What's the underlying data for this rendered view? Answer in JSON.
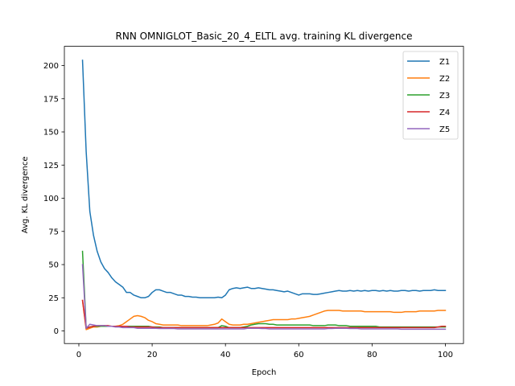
{
  "chart_data": {
    "type": "line",
    "title": "RNN OMNIGLOT_Basic_20_4_ELTL avg. training KL divergence",
    "xlabel": "Epoch",
    "ylabel": "Avg. KL divergence",
    "xlim": [
      -3.95,
      104.95
    ],
    "ylim": [
      -9.5,
      214.5
    ],
    "xticks": [
      0,
      20,
      40,
      60,
      80,
      100
    ],
    "xtick_labels": [
      "0",
      "20",
      "40",
      "60",
      "80",
      "100"
    ],
    "yticks": [
      0,
      25,
      50,
      75,
      100,
      125,
      150,
      175,
      200
    ],
    "ytick_labels": [
      "0",
      "25",
      "50",
      "75",
      "100",
      "125",
      "150",
      "175",
      "200"
    ],
    "grid": false,
    "legend_position": "top-right",
    "x": [
      1,
      2,
      3,
      4,
      5,
      6,
      7,
      8,
      9,
      10,
      11,
      12,
      13,
      14,
      15,
      16,
      17,
      18,
      19,
      20,
      21,
      22,
      23,
      24,
      25,
      26,
      27,
      28,
      29,
      30,
      31,
      32,
      33,
      34,
      35,
      36,
      37,
      38,
      39,
      40,
      41,
      42,
      43,
      44,
      45,
      46,
      47,
      48,
      49,
      50,
      51,
      52,
      53,
      54,
      55,
      56,
      57,
      58,
      59,
      60,
      61,
      62,
      63,
      64,
      65,
      66,
      67,
      68,
      69,
      70,
      71,
      72,
      73,
      74,
      75,
      76,
      77,
      78,
      79,
      80,
      81,
      82,
      83,
      84,
      85,
      86,
      87,
      88,
      89,
      90,
      91,
      92,
      93,
      94,
      95,
      96,
      97,
      98,
      99,
      100
    ],
    "series": [
      {
        "name": "Z1",
        "color": "#1f77b4",
        "values": [
          204,
          135,
          90,
          72,
          60,
          52,
          47,
          44,
          40,
          37,
          35,
          33,
          29,
          29,
          27,
          26,
          25,
          25,
          26,
          29,
          31,
          31,
          30,
          29,
          29,
          28,
          27,
          27,
          26,
          26,
          25.5,
          25.5,
          25,
          25,
          25,
          25,
          25,
          25.5,
          25,
          27,
          31,
          32,
          32.5,
          32,
          32.5,
          33,
          32,
          32,
          32.5,
          32,
          31.5,
          31,
          31,
          30.5,
          30,
          29.5,
          30,
          29,
          28,
          27,
          28,
          28,
          28,
          27.5,
          27.5,
          28,
          28.5,
          29,
          29.5,
          30,
          30.5,
          30,
          30,
          30.5,
          30,
          30.5,
          30,
          30.5,
          30,
          30.5,
          30.5,
          30,
          30.5,
          30,
          30.5,
          30,
          30,
          30.5,
          30.5,
          30,
          30.5,
          30.5,
          30,
          30.5,
          30.5,
          30.5,
          31,
          30.5,
          30.5,
          30.5
        ]
      },
      {
        "name": "Z2",
        "color": "#ff7f0e",
        "values": [
          23,
          1,
          2,
          3,
          3,
          3.5,
          4,
          3.5,
          3.5,
          3.5,
          4,
          5,
          7,
          9,
          11,
          11.5,
          11,
          10,
          8,
          7,
          5.5,
          5,
          4.5,
          4.5,
          4.5,
          4.5,
          4.5,
          4,
          4,
          4,
          4,
          4,
          4,
          4,
          4,
          4.5,
          5,
          6,
          9,
          7,
          5,
          4.5,
          4.5,
          4.5,
          5,
          5,
          5.5,
          6,
          6.5,
          7,
          7.5,
          8,
          8.5,
          8.5,
          8.5,
          8.5,
          8.5,
          9,
          9,
          9.5,
          10,
          10.5,
          11,
          12,
          13,
          14,
          15,
          15.5,
          15.5,
          15.5,
          15.5,
          15,
          15,
          15,
          15,
          15,
          15,
          14.5,
          14.5,
          14.5,
          14.5,
          14.5,
          14.5,
          14.5,
          14.5,
          14,
          14,
          14,
          14.5,
          14.5,
          14.5,
          14.5,
          15,
          15,
          15,
          15,
          15,
          15.5,
          15.5,
          15.5
        ]
      },
      {
        "name": "Z3",
        "color": "#2ca02c",
        "values": [
          60,
          2,
          3,
          3.5,
          3.5,
          3.5,
          3.5,
          3.5,
          3.5,
          3.5,
          3.5,
          3.5,
          3.5,
          3.5,
          3.5,
          3.5,
          3.5,
          3.5,
          3.5,
          3,
          3,
          3,
          2.5,
          2.5,
          2.5,
          2.5,
          2.5,
          2.5,
          2.5,
          2.5,
          2.5,
          2.5,
          2.5,
          2.5,
          2.5,
          2.5,
          2.5,
          2.5,
          4,
          3.5,
          2.5,
          2.5,
          2.5,
          2.5,
          3,
          3.5,
          4.5,
          5,
          5.5,
          5.5,
          5.5,
          5,
          5,
          4.5,
          4.5,
          4.5,
          4.5,
          4.5,
          4.5,
          4.5,
          4.5,
          4.5,
          4.5,
          4,
          4,
          4,
          4,
          4.5,
          4.5,
          4.5,
          4,
          4,
          4,
          3.5,
          3.5,
          3.5,
          3.5,
          3.5,
          3.5,
          3.5,
          3.5,
          3,
          3,
          3,
          3,
          3,
          3,
          3,
          3,
          3,
          3,
          3,
          3,
          3,
          3,
          3,
          3,
          3,
          3,
          3
        ]
      },
      {
        "name": "Z4",
        "color": "#d62728",
        "values": [
          23,
          2,
          3,
          3.5,
          4,
          4,
          4,
          4,
          3.5,
          3.5,
          3.5,
          3.5,
          3.5,
          3,
          3,
          3,
          3,
          3,
          3,
          3,
          2.5,
          2.5,
          2.5,
          2.5,
          2.5,
          2.5,
          2.5,
          2.5,
          2.5,
          2.5,
          2.5,
          2.5,
          2.5,
          2.5,
          2.5,
          2.5,
          2.5,
          2.5,
          2.5,
          2.5,
          2.5,
          2.5,
          2.5,
          2.5,
          2.5,
          2.5,
          2.5,
          2.5,
          2.5,
          2.5,
          2.5,
          2.5,
          2.5,
          2.5,
          2.5,
          2.5,
          2.5,
          2.5,
          2.5,
          2.5,
          2.5,
          2.5,
          2.5,
          2.5,
          2.5,
          2.5,
          2.5,
          2.5,
          2.5,
          2.5,
          2.5,
          2.5,
          2.5,
          2.5,
          2.5,
          2.5,
          2.5,
          2.5,
          2.5,
          2.5,
          2.5,
          2.5,
          2.5,
          2.5,
          2.5,
          2.5,
          2.5,
          2.5,
          2.5,
          2.5,
          2.5,
          2.5,
          2.5,
          2.5,
          2.5,
          2.5,
          2.5,
          3,
          3.5,
          3.5
        ]
      },
      {
        "name": "Z5",
        "color": "#9467bd",
        "values": [
          50,
          2,
          5,
          4.5,
          4,
          4,
          4,
          3.5,
          3.5,
          3,
          3,
          2.5,
          2.5,
          2.5,
          2.5,
          2,
          2,
          2,
          2,
          2,
          2,
          1.8,
          1.8,
          1.8,
          1.8,
          1.8,
          1.5,
          1.5,
          1.5,
          1.5,
          1.5,
          1.5,
          1.5,
          1.5,
          1.5,
          1.5,
          1.5,
          1.5,
          1.5,
          1.5,
          1.5,
          1.5,
          1.5,
          1.5,
          1.5,
          2,
          2,
          2,
          2,
          1.8,
          1.8,
          1.5,
          1.5,
          1.5,
          1.5,
          1.5,
          1.5,
          1.5,
          1.5,
          1.5,
          1.5,
          1.5,
          1.5,
          1.5,
          1.5,
          1.5,
          1.5,
          1.8,
          1.8,
          2,
          2,
          2,
          2,
          1.8,
          1.8,
          1.8,
          1.5,
          1.5,
          1.5,
          1.5,
          1.5,
          1.5,
          1.5,
          1.5,
          1.5,
          1.5,
          1.5,
          1.3,
          1.3,
          1.3,
          1.3,
          1.3,
          1.3,
          1.3,
          1.3,
          1.3,
          1.3,
          1.3,
          1.3,
          1.3
        ]
      }
    ]
  }
}
